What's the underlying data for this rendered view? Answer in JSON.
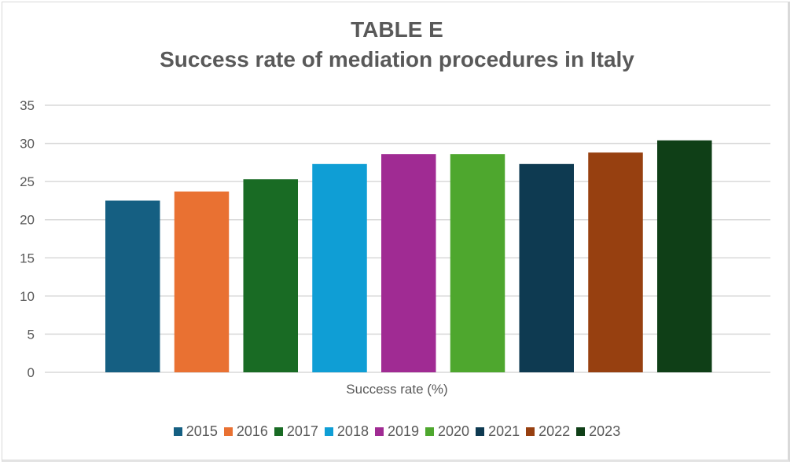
{
  "chart_data": {
    "type": "bar",
    "title": "TABLE E",
    "subtitle": "Success rate of mediation procedures in Italy",
    "xlabel": "Success rate (%)",
    "ylabel": "",
    "ylim": [
      0,
      35
    ],
    "yticks": [
      0,
      5,
      10,
      15,
      20,
      25,
      30,
      35
    ],
    "grid": true,
    "legend_position": "bottom",
    "categories": [
      "Success rate (%)"
    ],
    "series": [
      {
        "name": "2015",
        "values": [
          22.5
        ],
        "color": "#155f82"
      },
      {
        "name": "2016",
        "values": [
          23.7
        ],
        "color": "#e97132"
      },
      {
        "name": "2017",
        "values": [
          25.3
        ],
        "color": "#196b24"
      },
      {
        "name": "2018",
        "values": [
          27.3
        ],
        "color": "#0f9ed5"
      },
      {
        "name": "2019",
        "values": [
          28.6
        ],
        "color": "#a02b93"
      },
      {
        "name": "2020",
        "values": [
          28.6
        ],
        "color": "#4ea72e"
      },
      {
        "name": "2021",
        "values": [
          27.3
        ],
        "color": "#0e3a51"
      },
      {
        "name": "2022",
        "values": [
          28.8
        ],
        "color": "#974010"
      },
      {
        "name": "2023",
        "values": [
          30.4
        ],
        "color": "#0f3f17"
      }
    ]
  }
}
